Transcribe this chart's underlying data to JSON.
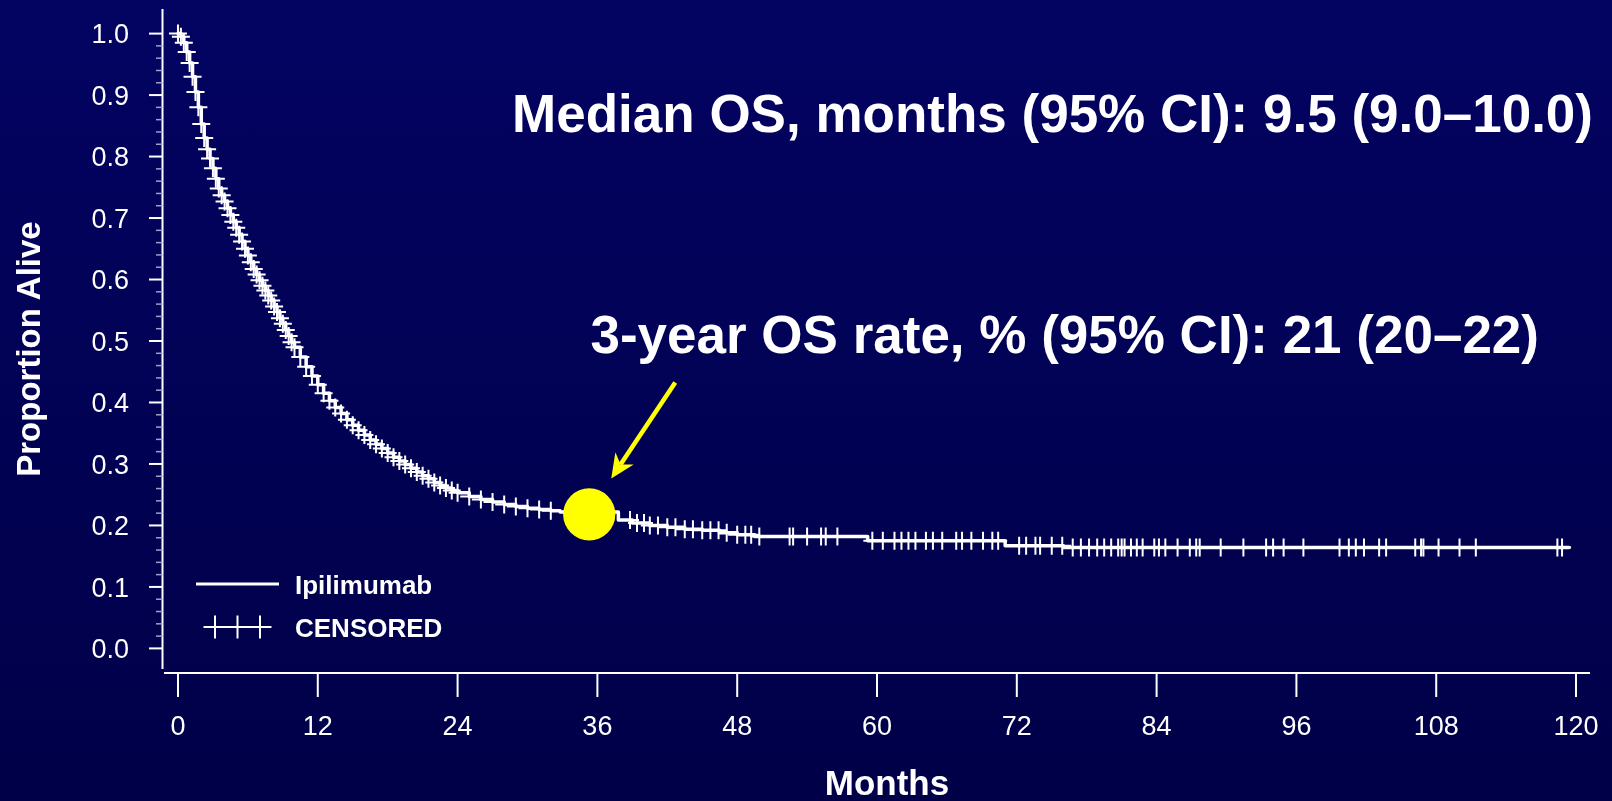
{
  "chart_data": {
    "type": "step",
    "xlabel": "Months",
    "ylabel": "Proportion Alive",
    "xlim": [
      -1.2,
      121.2
    ],
    "ylim": [
      -0.04,
      1.04
    ],
    "xticks": [
      0,
      12,
      24,
      36,
      48,
      60,
      72,
      84,
      96,
      108,
      120
    ],
    "yticks": [
      {
        "value": 0,
        "label": "0.0"
      },
      {
        "value": 0.02,
        "label": null
      },
      {
        "value": 0.04,
        "label": null
      },
      {
        "value": 0.06,
        "label": null
      },
      {
        "value": 0.08,
        "label": null
      },
      {
        "value": 0.1,
        "label": "0.1"
      },
      {
        "value": 0.12,
        "label": null
      },
      {
        "value": 0.14,
        "label": null
      },
      {
        "value": 0.16,
        "label": null
      },
      {
        "value": 0.18,
        "label": null
      },
      {
        "value": 0.2,
        "label": "0.2"
      },
      {
        "value": 0.22,
        "label": null
      },
      {
        "value": 0.24,
        "label": null
      },
      {
        "value": 0.26,
        "label": null
      },
      {
        "value": 0.28,
        "label": null
      },
      {
        "value": 0.3,
        "label": "0.3"
      },
      {
        "value": 0.32,
        "label": null
      },
      {
        "value": 0.34,
        "label": null
      },
      {
        "value": 0.36,
        "label": null
      },
      {
        "value": 0.38,
        "label": null
      },
      {
        "value": 0.4,
        "label": "0.4"
      },
      {
        "value": 0.42,
        "label": null
      },
      {
        "value": 0.44,
        "label": null
      },
      {
        "value": 0.46,
        "label": null
      },
      {
        "value": 0.48,
        "label": null
      },
      {
        "value": 0.5,
        "label": "0.5"
      },
      {
        "value": 0.52,
        "label": null
      },
      {
        "value": 0.54,
        "label": null
      },
      {
        "value": 0.56,
        "label": null
      },
      {
        "value": 0.58,
        "label": null
      },
      {
        "value": 0.6,
        "label": "0.6"
      },
      {
        "value": 0.62,
        "label": null
      },
      {
        "value": 0.64,
        "label": null
      },
      {
        "value": 0.66,
        "label": null
      },
      {
        "value": 0.68,
        "label": null
      },
      {
        "value": 0.7,
        "label": "0.7"
      },
      {
        "value": 0.72,
        "label": null
      },
      {
        "value": 0.74,
        "label": null
      },
      {
        "value": 0.76,
        "label": null
      },
      {
        "value": 0.78,
        "label": null
      },
      {
        "value": 0.8,
        "label": "0.8"
      },
      {
        "value": 0.82,
        "label": null
      },
      {
        "value": 0.84,
        "label": null
      },
      {
        "value": 0.86,
        "label": null
      },
      {
        "value": 0.88,
        "label": null
      },
      {
        "value": 0.9,
        "label": "0.9"
      },
      {
        "value": 0.92,
        "label": null
      },
      {
        "value": 0.94,
        "label": null
      },
      {
        "value": 0.96,
        "label": null
      },
      {
        "value": 0.98,
        "label": null
      },
      {
        "value": 1,
        "label": "1.0"
      }
    ],
    "legend": "bottom left",
    "annotations": [
      "Median OS, months (95% CI): 9.5 (9.0–10.0)",
      {
        "text": "3-year OS rate, % (95% CI): 21 (20–22)",
        "x": 35.3,
        "y": 0.218
      }
    ],
    "series": [
      {
        "name": "Ipilimumab",
        "color": "#ffffff",
        "x": [
          0,
          0.25,
          0.5,
          0.75,
          1,
          1.25,
          1.5,
          1.75,
          2,
          2.25,
          2.5,
          2.75,
          3,
          3.25,
          3.5,
          3.75,
          4,
          4.25,
          4.5,
          4.75,
          5,
          5.25,
          5.5,
          5.75,
          6,
          6.25,
          6.5,
          6.75,
          7,
          7.25,
          7.5,
          7.75,
          8,
          8.25,
          8.5,
          8.75,
          9,
          9.25,
          9.5,
          9.75,
          10,
          10.5,
          11,
          11.5,
          12,
          12.5,
          13,
          13.5,
          14,
          14.5,
          15,
          15.5,
          16,
          16.5,
          17,
          17.5,
          18,
          18.5,
          19,
          19.5,
          20,
          20.5,
          21,
          21.5,
          22,
          22.5,
          23,
          23.5,
          24,
          25,
          26,
          27,
          28,
          29,
          30,
          31,
          32,
          32.8,
          37.8,
          39,
          40.5,
          42,
          43.5,
          45,
          46.5,
          48,
          49.5,
          59.2,
          71,
          76,
          119.4
        ],
        "values": [
          1.0,
          0.995,
          0.985,
          0.97,
          0.952,
          0.93,
          0.905,
          0.88,
          0.853,
          0.83,
          0.812,
          0.797,
          0.781,
          0.764,
          0.748,
          0.737,
          0.727,
          0.716,
          0.705,
          0.694,
          0.684,
          0.673,
          0.662,
          0.65,
          0.639,
          0.628,
          0.617,
          0.608,
          0.599,
          0.59,
          0.582,
          0.574,
          0.566,
          0.556,
          0.547,
          0.537,
          0.528,
          0.518,
          0.508,
          0.498,
          0.49,
          0.474,
          0.458,
          0.443,
          0.429,
          0.415,
          0.403,
          0.392,
          0.382,
          0.372,
          0.363,
          0.355,
          0.347,
          0.339,
          0.332,
          0.325,
          0.318,
          0.311,
          0.305,
          0.299,
          0.293,
          0.287,
          0.281,
          0.276,
          0.27,
          0.265,
          0.261,
          0.257,
          0.253,
          0.247,
          0.242,
          0.238,
          0.234,
          0.231,
          0.228,
          0.226,
          0.224,
          0.222,
          0.209,
          0.204,
          0.2,
          0.197,
          0.194,
          0.192,
          0.188,
          0.185,
          0.182,
          0.175,
          0.167,
          0.164,
          0.164
        ]
      },
      {
        "name": "CENSORED",
        "type": "scatter",
        "marker": "cross",
        "color": "#ffffff",
        "x": [
          0,
          0.25,
          0.5,
          0.75,
          1,
          1.25,
          1.5,
          1.75,
          2,
          2.25,
          2.5,
          2.75,
          3,
          3.25,
          3.5,
          3.75,
          4,
          4.25,
          4.5,
          4.75,
          5,
          5.25,
          5.5,
          5.75,
          6,
          6.25,
          6.5,
          6.75,
          7,
          7.25,
          7.5,
          7.75,
          8,
          8.25,
          8.5,
          8.75,
          9,
          9.25,
          9.5,
          9.75,
          10,
          10.5,
          11,
          11.5,
          12,
          12.5,
          13,
          13.5,
          14,
          14.5,
          15,
          15.5,
          16,
          16.5,
          17,
          17.5,
          18,
          18.5,
          19,
          19.5,
          20,
          20.5,
          21,
          21.5,
          22,
          22.5,
          23,
          23.5,
          24,
          25,
          26,
          27,
          28,
          29,
          30,
          31,
          32,
          38.8,
          39.4,
          40.0,
          40.5,
          41.2,
          42.0,
          42.7,
          43.5,
          44.2,
          45.0,
          45.7,
          46.4,
          47.1,
          48.0,
          48.7,
          49.2,
          49.9,
          52.5,
          52.8,
          54.0,
          55.2,
          55.6,
          56.6,
          59.6,
          60.5,
          61.5,
          62.1,
          62.7,
          63.3,
          64.2,
          64.8,
          65.6,
          66.8,
          67.3,
          68.1,
          69.1,
          69.9,
          70.4,
          72.2,
          72.8,
          73.6,
          74.0,
          75.0,
          75.9,
          76.8,
          77.5,
          78.2,
          78.9,
          79.5,
          80.1,
          80.7,
          81.0,
          81.25,
          81.8,
          82.3,
          82.8,
          83.8,
          84.2,
          84.75,
          85.8,
          86.85,
          87.4,
          87.7,
          89.5,
          91.45,
          93.4,
          94.0,
          94.9,
          96.6,
          99.7,
          100.5,
          101.1,
          101.8,
          103.1,
          103.7,
          106.2,
          106.7,
          106.9,
          108.2,
          110.0,
          111.4,
          118.4,
          118.8
        ],
        "values": [
          1.0,
          0.995,
          0.985,
          0.97,
          0.952,
          0.93,
          0.905,
          0.88,
          0.853,
          0.83,
          0.812,
          0.797,
          0.781,
          0.764,
          0.748,
          0.737,
          0.727,
          0.716,
          0.705,
          0.694,
          0.684,
          0.673,
          0.662,
          0.65,
          0.639,
          0.628,
          0.617,
          0.608,
          0.599,
          0.59,
          0.582,
          0.574,
          0.566,
          0.556,
          0.547,
          0.537,
          0.528,
          0.518,
          0.508,
          0.498,
          0.49,
          0.474,
          0.458,
          0.443,
          0.429,
          0.415,
          0.403,
          0.392,
          0.382,
          0.372,
          0.363,
          0.355,
          0.347,
          0.339,
          0.332,
          0.325,
          0.318,
          0.311,
          0.305,
          0.299,
          0.293,
          0.287,
          0.281,
          0.276,
          0.27,
          0.265,
          0.261,
          0.257,
          0.253,
          0.247,
          0.242,
          0.238,
          0.234,
          0.231,
          0.228,
          0.226,
          0.224,
          0.209,
          0.204,
          0.204,
          0.2,
          0.2,
          0.197,
          0.197,
          0.194,
          0.194,
          0.192,
          0.192,
          0.192,
          0.188,
          0.185,
          0.185,
          0.185,
          0.182,
          0.182,
          0.182,
          0.182,
          0.182,
          0.182,
          0.182,
          0.175,
          0.175,
          0.175,
          0.175,
          0.175,
          0.175,
          0.175,
          0.175,
          0.175,
          0.175,
          0.175,
          0.175,
          0.175,
          0.175,
          0.175,
          0.167,
          0.167,
          0.167,
          0.167,
          0.167,
          0.167,
          0.164,
          0.164,
          0.164,
          0.164,
          0.164,
          0.164,
          0.164,
          0.164,
          0.164,
          0.164,
          0.164,
          0.164,
          0.164,
          0.164,
          0.164,
          0.164,
          0.164,
          0.164,
          0.164,
          0.164,
          0.164,
          0.164,
          0.164,
          0.164,
          0.164,
          0.164,
          0.164,
          0.164,
          0.164,
          0.164,
          0.164,
          0.164,
          0.164,
          0.164,
          0.164,
          0.164,
          0.164,
          0.164,
          0.164
        ]
      },
      {
        "type": "scatter",
        "marker": "circle",
        "color": "#ffff00",
        "x": [
          35.3
        ],
        "values": [
          0.218
        ]
      }
    ]
  }
}
